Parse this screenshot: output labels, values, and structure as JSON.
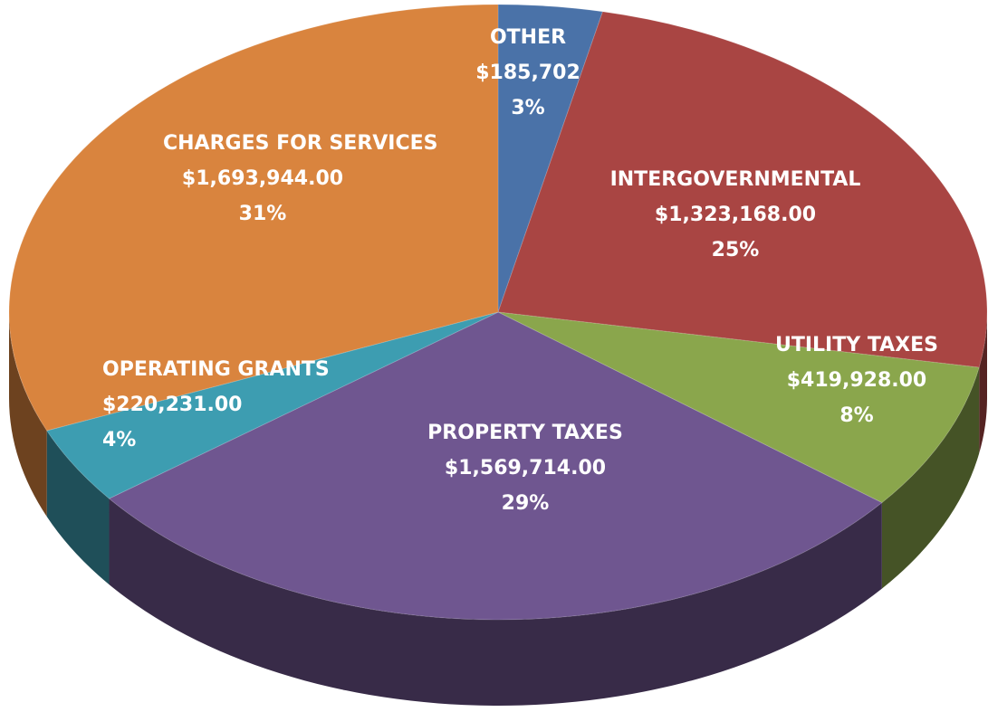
{
  "chart_data": {
    "type": "pie",
    "categories": [
      "OTHER",
      "INTERGOVERNMENTAL",
      "UTILITY TAXES",
      "PROPERTY TAXES",
      "OPERATING GRANTS",
      "CHARGES FOR SERVICES"
    ],
    "values": [
      185702,
      1323168,
      419928,
      1569714,
      220231,
      1693944
    ],
    "value_labels": [
      "$185,702",
      "$1,323,168.00",
      "$419,928.00",
      "$1,569,714.00",
      "$220,231.00",
      "$1,693,944.00"
    ],
    "percents": [
      3,
      25,
      8,
      29,
      4,
      31
    ],
    "percent_labels": [
      "3%",
      "25%",
      "8%",
      "29%",
      "4%",
      "31%"
    ],
    "colors": [
      "#4a72a8",
      "#a94543",
      "#8aa64c",
      "#6f5690",
      "#3d9db1",
      "#d9843e"
    ]
  }
}
